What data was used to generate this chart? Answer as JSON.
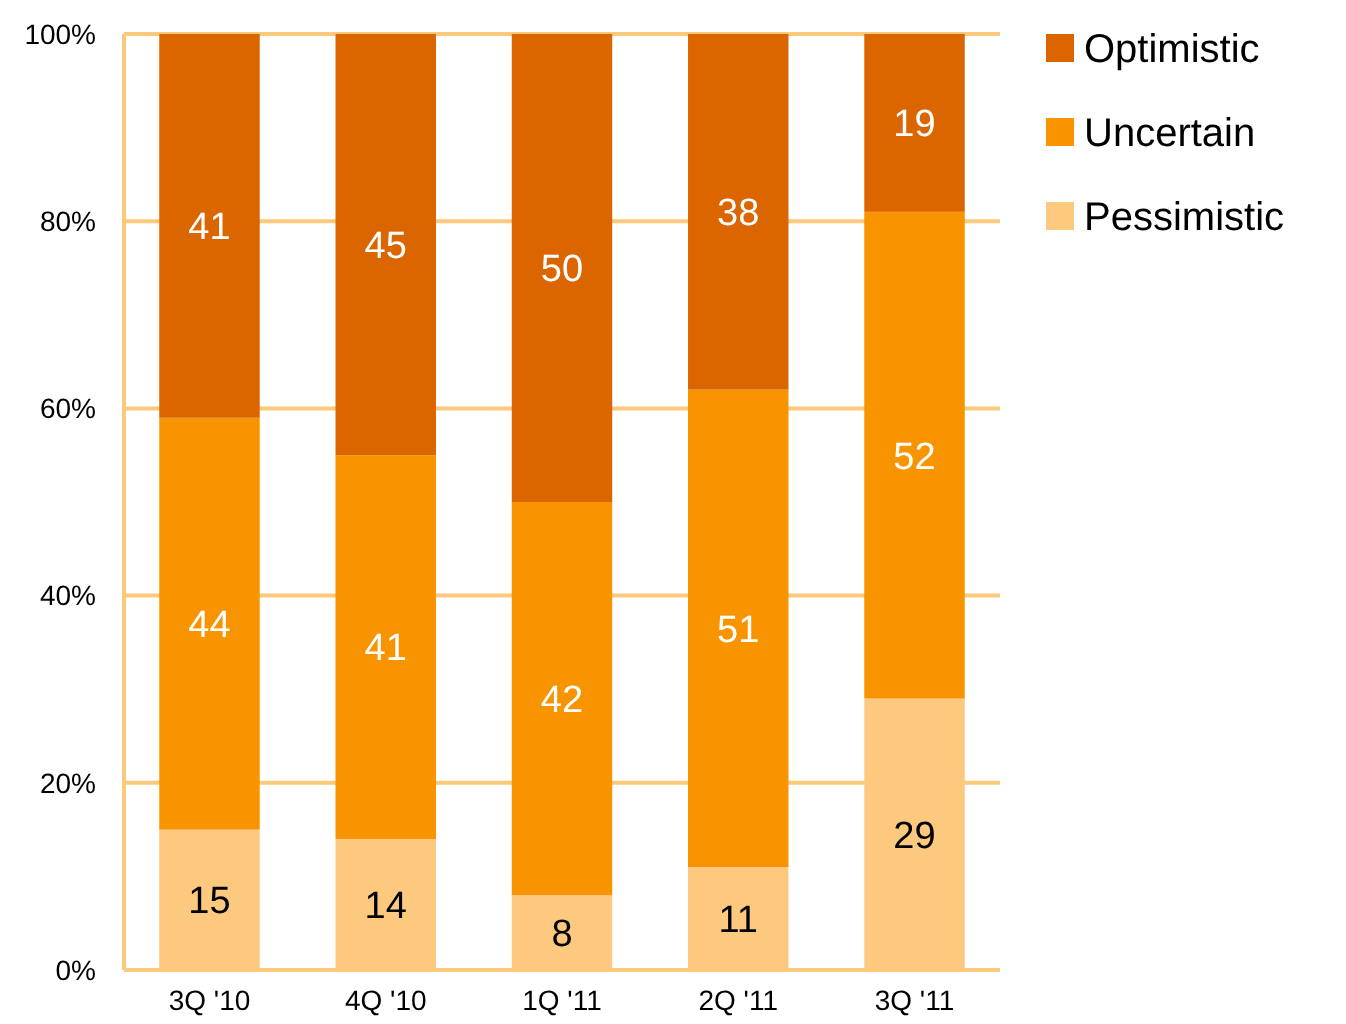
{
  "chart_data": {
    "type": "bar",
    "stacked": true,
    "categories": [
      "3Q '10",
      "4Q '10",
      "1Q '11",
      "2Q '11",
      "3Q '11"
    ],
    "series": [
      {
        "name": "Pessimistic",
        "color": "#fdc97f",
        "values": [
          15,
          14,
          8,
          11,
          29
        ]
      },
      {
        "name": "Uncertain",
        "color": "#f79400",
        "values": [
          44,
          41,
          42,
          51,
          52
        ]
      },
      {
        "name": "Optimistic",
        "color": "#db6600",
        "values": [
          41,
          45,
          50,
          38,
          19
        ]
      }
    ],
    "ylim": [
      0,
      100
    ],
    "yticks": [
      {
        "value": 0,
        "label": "0%"
      },
      {
        "value": 20,
        "label": "20%"
      },
      {
        "value": 40,
        "label": "40%"
      },
      {
        "value": 60,
        "label": "60%"
      },
      {
        "value": 80,
        "label": "80%"
      },
      {
        "value": 100,
        "label": "100%"
      }
    ],
    "grid": "y",
    "legend": "top right",
    "data_labels": true
  }
}
